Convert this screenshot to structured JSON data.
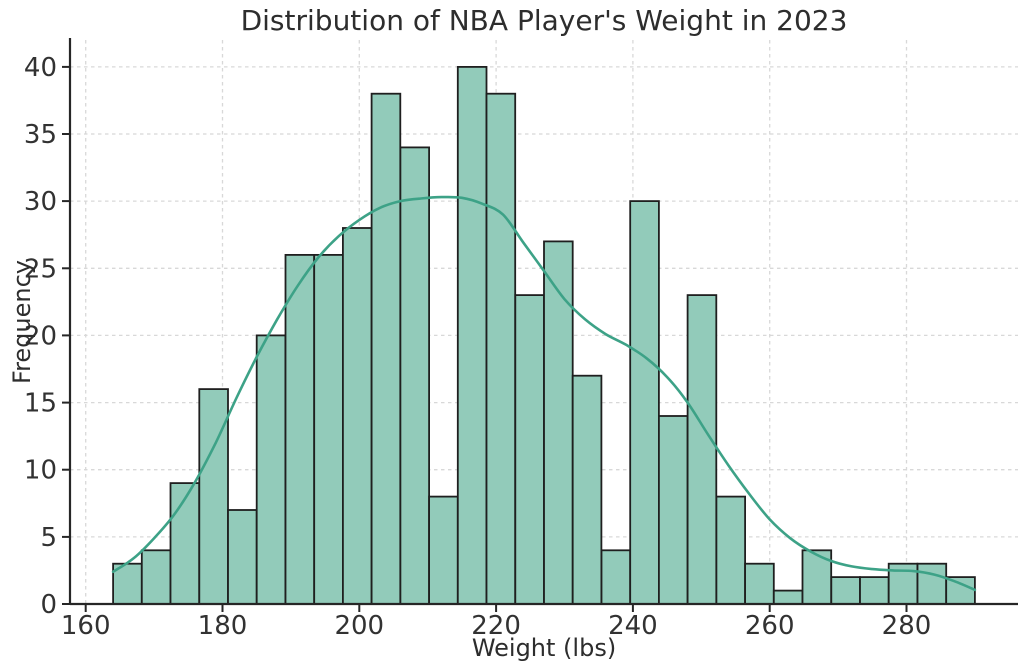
{
  "chart_data": {
    "type": "histogram",
    "title": "Distribution of NBA Player's Weight in 2023",
    "xlabel": "Weight (lbs)",
    "ylabel": "Frequency",
    "bin_edges": [
      164.0,
      168.2,
      172.4,
      176.6,
      180.8,
      185.0,
      189.2,
      193.4,
      197.6,
      201.8,
      206.0,
      210.2,
      214.4,
      218.6,
      222.8,
      227.0,
      231.2,
      235.4,
      239.6,
      243.8,
      248.0,
      252.2,
      256.4,
      260.6,
      264.8,
      269.0,
      273.2,
      277.4,
      281.6,
      285.8,
      290.0
    ],
    "counts": [
      3,
      4,
      9,
      16,
      7,
      20,
      26,
      26,
      28,
      38,
      34,
      8,
      40,
      38,
      23,
      27,
      17,
      4,
      30,
      14,
      23,
      8,
      3,
      1,
      4,
      2,
      2,
      3,
      3,
      2
    ],
    "kde": {
      "x": [
        164,
        167,
        170,
        173,
        176,
        179,
        182,
        185,
        188,
        191,
        194,
        197,
        200,
        203,
        206,
        209,
        212,
        215,
        218,
        221,
        224,
        227,
        230,
        233,
        236,
        239,
        242,
        245,
        248,
        251,
        254,
        257,
        260,
        263,
        266,
        269,
        272,
        275,
        278,
        281,
        284,
        287,
        290
      ],
      "y": [
        2.4,
        3.4,
        4.9,
        6.7,
        9.1,
        12.0,
        15.3,
        18.4,
        21.2,
        23.7,
        25.8,
        27.4,
        28.6,
        29.5,
        30.0,
        30.2,
        30.3,
        30.25,
        29.8,
        29.0,
        26.9,
        24.8,
        22.7,
        21.2,
        20.1,
        19.3,
        18.3,
        16.9,
        15.0,
        12.6,
        10.3,
        8.2,
        6.3,
        4.9,
        3.9,
        3.2,
        2.8,
        2.6,
        2.5,
        2.45,
        2.2,
        1.7,
        1.05
      ]
    },
    "x_ticks": [
      160,
      180,
      200,
      220,
      240,
      260,
      280
    ],
    "y_ticks": [
      0,
      5,
      10,
      15,
      20,
      25,
      30,
      35,
      40
    ],
    "xlim": [
      157.7,
      296.3
    ],
    "ylim": [
      0,
      42
    ],
    "grid": true,
    "grid_style": "dashed",
    "legend": "none",
    "colors": {
      "bar_fill": "#92cbba",
      "bar_edge": "#1f1f1f",
      "kde_line": "#3da287",
      "grid": "#d8d8d8",
      "axis": "#262626",
      "text": "#2d2d2d"
    }
  }
}
